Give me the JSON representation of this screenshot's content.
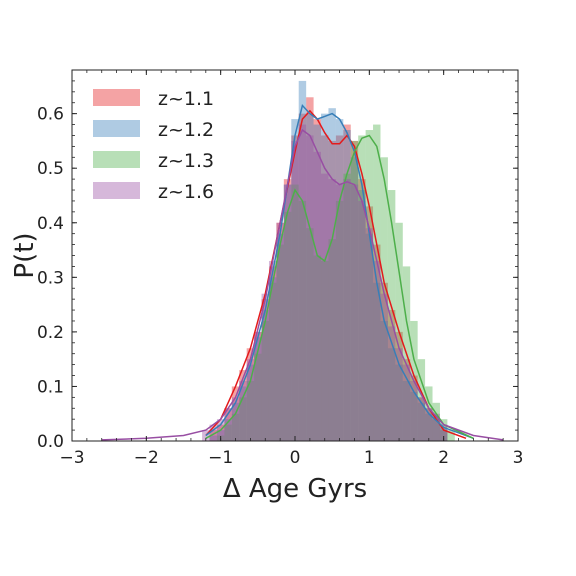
{
  "chart_data": {
    "type": "histogram-kde",
    "title": "",
    "xlabel": "Δ Age Gyrs",
    "ylabel": "P(t)",
    "xlim": [
      -3,
      3
    ],
    "ylim": [
      0,
      0.68
    ],
    "xticks": [
      -3,
      -2,
      -1,
      0,
      1,
      2,
      3
    ],
    "yticks": [
      0.0,
      0.1,
      0.2,
      0.3,
      0.4,
      0.5,
      0.6
    ],
    "legend_position": "top-left",
    "grid": false,
    "series": [
      {
        "name": "z~1.1",
        "color": "#e41a1c",
        "kde": [
          [
            -1.2,
            0.01
          ],
          [
            -1.0,
            0.04
          ],
          [
            -0.8,
            0.1
          ],
          [
            -0.6,
            0.17
          ],
          [
            -0.4,
            0.27
          ],
          [
            -0.2,
            0.4
          ],
          [
            0.0,
            0.53
          ],
          [
            0.1,
            0.59
          ],
          [
            0.2,
            0.605
          ],
          [
            0.3,
            0.59
          ],
          [
            0.4,
            0.565
          ],
          [
            0.5,
            0.545
          ],
          [
            0.6,
            0.545
          ],
          [
            0.7,
            0.56
          ],
          [
            0.8,
            0.54
          ],
          [
            0.9,
            0.49
          ],
          [
            1.0,
            0.43
          ],
          [
            1.1,
            0.36
          ],
          [
            1.2,
            0.29
          ],
          [
            1.4,
            0.2
          ],
          [
            1.6,
            0.12
          ],
          [
            1.8,
            0.06
          ],
          [
            2.0,
            0.02
          ],
          [
            2.3,
            0.005
          ]
        ],
        "hist": [
          [
            -1.1,
            0.02
          ],
          [
            -1.0,
            0.03
          ],
          [
            -0.9,
            0.06
          ],
          [
            -0.8,
            0.1
          ],
          [
            -0.7,
            0.13
          ],
          [
            -0.6,
            0.17
          ],
          [
            -0.5,
            0.2
          ],
          [
            -0.4,
            0.26
          ],
          [
            -0.3,
            0.32
          ],
          [
            -0.2,
            0.4
          ],
          [
            -0.1,
            0.48
          ],
          [
            0.0,
            0.56
          ],
          [
            0.1,
            0.6
          ],
          [
            0.2,
            0.63
          ],
          [
            0.3,
            0.59
          ],
          [
            0.4,
            0.56
          ],
          [
            0.5,
            0.55
          ],
          [
            0.6,
            0.56
          ],
          [
            0.7,
            0.58
          ],
          [
            0.8,
            0.55
          ],
          [
            0.9,
            0.48
          ],
          [
            1.0,
            0.43
          ],
          [
            1.1,
            0.36
          ],
          [
            1.2,
            0.29
          ],
          [
            1.3,
            0.24
          ],
          [
            1.4,
            0.2
          ],
          [
            1.5,
            0.15
          ],
          [
            1.6,
            0.12
          ],
          [
            1.7,
            0.08
          ],
          [
            1.8,
            0.06
          ],
          [
            1.9,
            0.04
          ],
          [
            2.0,
            0.02
          ]
        ]
      },
      {
        "name": "z~1.2",
        "color": "#377eb8",
        "kde": [
          [
            -1.2,
            0.01
          ],
          [
            -1.0,
            0.03
          ],
          [
            -0.8,
            0.07
          ],
          [
            -0.6,
            0.14
          ],
          [
            -0.4,
            0.24
          ],
          [
            -0.2,
            0.38
          ],
          [
            0.0,
            0.56
          ],
          [
            0.1,
            0.615
          ],
          [
            0.2,
            0.6
          ],
          [
            0.3,
            0.59
          ],
          [
            0.4,
            0.595
          ],
          [
            0.5,
            0.6
          ],
          [
            0.6,
            0.59
          ],
          [
            0.7,
            0.565
          ],
          [
            0.8,
            0.53
          ],
          [
            0.9,
            0.47
          ],
          [
            1.0,
            0.38
          ],
          [
            1.1,
            0.29
          ],
          [
            1.2,
            0.22
          ],
          [
            1.4,
            0.14
          ],
          [
            1.6,
            0.09
          ],
          [
            1.8,
            0.05
          ],
          [
            2.0,
            0.025
          ],
          [
            2.4,
            0.005
          ]
        ],
        "hist": [
          [
            -1.1,
            0.01
          ],
          [
            -1.0,
            0.02
          ],
          [
            -0.9,
            0.04
          ],
          [
            -0.8,
            0.07
          ],
          [
            -0.7,
            0.1
          ],
          [
            -0.6,
            0.14
          ],
          [
            -0.5,
            0.19
          ],
          [
            -0.4,
            0.24
          ],
          [
            -0.3,
            0.3
          ],
          [
            -0.2,
            0.38
          ],
          [
            -0.1,
            0.47
          ],
          [
            0.0,
            0.59
          ],
          [
            0.1,
            0.66
          ],
          [
            0.2,
            0.6
          ],
          [
            0.3,
            0.58
          ],
          [
            0.4,
            0.6
          ],
          [
            0.5,
            0.61
          ],
          [
            0.6,
            0.59
          ],
          [
            0.7,
            0.57
          ],
          [
            0.8,
            0.52
          ],
          [
            0.9,
            0.46
          ],
          [
            1.0,
            0.38
          ],
          [
            1.1,
            0.29
          ],
          [
            1.2,
            0.22
          ],
          [
            1.3,
            0.17
          ],
          [
            1.4,
            0.14
          ],
          [
            1.5,
            0.11
          ],
          [
            1.6,
            0.09
          ],
          [
            1.7,
            0.07
          ],
          [
            1.8,
            0.05
          ],
          [
            1.9,
            0.04
          ],
          [
            2.0,
            0.025
          ]
        ]
      },
      {
        "name": "z~1.3",
        "color": "#4daf4a",
        "kde": [
          [
            -1.2,
            0.005
          ],
          [
            -1.0,
            0.02
          ],
          [
            -0.8,
            0.05
          ],
          [
            -0.6,
            0.11
          ],
          [
            -0.4,
            0.22
          ],
          [
            -0.2,
            0.36
          ],
          [
            -0.1,
            0.42
          ],
          [
            0.0,
            0.46
          ],
          [
            0.1,
            0.44
          ],
          [
            0.2,
            0.39
          ],
          [
            0.3,
            0.34
          ],
          [
            0.4,
            0.33
          ],
          [
            0.5,
            0.37
          ],
          [
            0.6,
            0.44
          ],
          [
            0.7,
            0.49
          ],
          [
            0.8,
            0.53
          ],
          [
            0.9,
            0.555
          ],
          [
            1.0,
            0.56
          ],
          [
            1.1,
            0.54
          ],
          [
            1.2,
            0.48
          ],
          [
            1.3,
            0.4
          ],
          [
            1.4,
            0.31
          ],
          [
            1.5,
            0.22
          ],
          [
            1.6,
            0.15
          ],
          [
            1.8,
            0.07
          ],
          [
            2.0,
            0.03
          ],
          [
            2.4,
            0.005
          ]
        ],
        "hist": [
          [
            -1.0,
            0.01
          ],
          [
            -0.9,
            0.03
          ],
          [
            -0.8,
            0.05
          ],
          [
            -0.7,
            0.08
          ],
          [
            -0.6,
            0.11
          ],
          [
            -0.5,
            0.16
          ],
          [
            -0.4,
            0.22
          ],
          [
            -0.3,
            0.29
          ],
          [
            -0.2,
            0.36
          ],
          [
            -0.1,
            0.42
          ],
          [
            0.0,
            0.47
          ],
          [
            0.1,
            0.44
          ],
          [
            0.2,
            0.39
          ],
          [
            0.3,
            0.34
          ],
          [
            0.4,
            0.33
          ],
          [
            0.5,
            0.37
          ],
          [
            0.6,
            0.44
          ],
          [
            0.7,
            0.49
          ],
          [
            0.8,
            0.55
          ],
          [
            0.9,
            0.56
          ],
          [
            1.0,
            0.57
          ],
          [
            1.1,
            0.58
          ],
          [
            1.2,
            0.52
          ],
          [
            1.3,
            0.46
          ],
          [
            1.4,
            0.4
          ],
          [
            1.5,
            0.32
          ],
          [
            1.6,
            0.22
          ],
          [
            1.7,
            0.15
          ],
          [
            1.8,
            0.1
          ],
          [
            1.9,
            0.07
          ],
          [
            2.0,
            0.04
          ],
          [
            2.1,
            0.02
          ]
        ]
      },
      {
        "name": "z~1.6",
        "color": "#984ea3",
        "kde": [
          [
            -2.6,
            0.002
          ],
          [
            -2.0,
            0.005
          ],
          [
            -1.5,
            0.01
          ],
          [
            -1.2,
            0.02
          ],
          [
            -1.0,
            0.04
          ],
          [
            -0.8,
            0.08
          ],
          [
            -0.6,
            0.15
          ],
          [
            -0.4,
            0.26
          ],
          [
            -0.2,
            0.4
          ],
          [
            0.0,
            0.54
          ],
          [
            0.1,
            0.57
          ],
          [
            0.2,
            0.56
          ],
          [
            0.3,
            0.53
          ],
          [
            0.4,
            0.5
          ],
          [
            0.5,
            0.48
          ],
          [
            0.6,
            0.47
          ],
          [
            0.7,
            0.475
          ],
          [
            0.8,
            0.47
          ],
          [
            0.9,
            0.44
          ],
          [
            1.0,
            0.39
          ],
          [
            1.1,
            0.33
          ],
          [
            1.2,
            0.27
          ],
          [
            1.4,
            0.17
          ],
          [
            1.6,
            0.11
          ],
          [
            1.8,
            0.06
          ],
          [
            2.0,
            0.03
          ],
          [
            2.4,
            0.01
          ],
          [
            2.8,
            0.002
          ]
        ],
        "hist": [
          [
            -1.2,
            0.02
          ],
          [
            -1.1,
            0.03
          ],
          [
            -1.0,
            0.04
          ],
          [
            -0.9,
            0.06
          ],
          [
            -0.8,
            0.08
          ],
          [
            -0.7,
            0.11
          ],
          [
            -0.6,
            0.15
          ],
          [
            -0.5,
            0.2
          ],
          [
            -0.4,
            0.27
          ],
          [
            -0.3,
            0.33
          ],
          [
            -0.2,
            0.4
          ],
          [
            -0.1,
            0.47
          ],
          [
            0.0,
            0.55
          ],
          [
            0.1,
            0.58
          ],
          [
            0.2,
            0.56
          ],
          [
            0.3,
            0.53
          ],
          [
            0.4,
            0.49
          ],
          [
            0.5,
            0.48
          ],
          [
            0.6,
            0.47
          ],
          [
            0.7,
            0.48
          ],
          [
            0.8,
            0.47
          ],
          [
            0.9,
            0.44
          ],
          [
            1.0,
            0.39
          ],
          [
            1.1,
            0.33
          ],
          [
            1.2,
            0.27
          ],
          [
            1.3,
            0.21
          ],
          [
            1.4,
            0.17
          ],
          [
            1.5,
            0.14
          ],
          [
            1.6,
            0.11
          ],
          [
            1.7,
            0.08
          ],
          [
            1.8,
            0.06
          ],
          [
            1.9,
            0.05
          ],
          [
            2.0,
            0.03
          ]
        ]
      }
    ]
  }
}
